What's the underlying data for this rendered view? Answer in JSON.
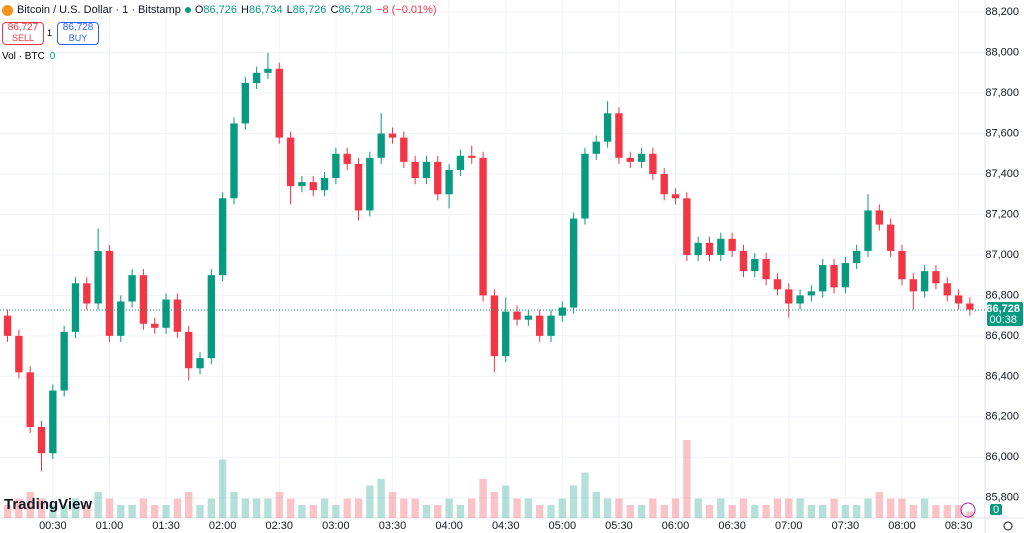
{
  "header": {
    "symbol": "Bitcoin / U.S. Dollar · 1 · Bitstamp",
    "ohlc": [
      {
        "key": "O",
        "value": "86,726"
      },
      {
        "key": "H",
        "value": "86,734"
      },
      {
        "key": "L",
        "value": "86,726"
      },
      {
        "key": "C",
        "value": "86,728"
      }
    ],
    "change": "−8 (−0.01%)",
    "sell": {
      "price": "86,727",
      "label": "SELL"
    },
    "buy": {
      "price": "86,728",
      "label": "BUY"
    },
    "quantity": "1",
    "logo": "TradingView"
  },
  "chart_data": {
    "type": "candlestick",
    "up_color": "#089981",
    "down_color": "#f23645",
    "grid": true,
    "x": [
      6,
      12,
      18,
      24,
      30,
      36,
      42,
      48,
      54,
      60,
      66,
      72,
      78,
      84,
      90,
      96,
      102,
      108,
      114,
      120,
      126,
      132,
      138,
      144,
      150,
      156,
      162,
      168,
      174,
      180,
      186,
      192,
      198,
      204,
      210,
      216,
      222,
      228,
      234,
      240,
      246,
      252,
      258,
      264,
      270,
      276,
      282,
      288,
      294,
      300,
      306,
      312,
      318,
      324,
      330,
      336,
      342,
      348,
      354,
      360,
      366,
      372,
      378,
      384,
      390,
      396,
      402,
      408,
      414,
      420,
      426,
      432,
      438,
      444,
      450,
      456,
      462,
      468,
      474,
      480,
      486,
      492,
      498,
      504,
      510,
      516
    ],
    "open": [
      86700,
      86600,
      86420,
      86150,
      86020,
      86330,
      86620,
      86860,
      86760,
      87020,
      86600,
      86770,
      86900,
      86660,
      86640,
      86780,
      86620,
      86440,
      86490,
      86900,
      87280,
      87650,
      87850,
      87900,
      87920,
      87580,
      87340,
      87360,
      87320,
      87380,
      87500,
      87450,
      87220,
      87480,
      87600,
      87580,
      87460,
      87380,
      87460,
      87300,
      87420,
      87490,
      87480,
      86800,
      86500,
      86720,
      86680,
      86700,
      86600,
      86700,
      86740,
      87180,
      87500,
      87560,
      87700,
      87480,
      87460,
      87500,
      87400,
      87300,
      87280,
      87000,
      87060,
      87000,
      87080,
      87020,
      86920,
      86980,
      86880,
      86830,
      86760,
      86800,
      86820,
      86950,
      86840,
      86960,
      87020,
      87220,
      87150,
      87020,
      86880,
      86820,
      86920,
      86860,
      86800,
      86760
    ],
    "high": [
      86730,
      86630,
      86450,
      86180,
      86360,
      86650,
      86890,
      86890,
      87130,
      87050,
      86800,
      86930,
      86930,
      86690,
      86810,
      86810,
      86650,
      86520,
      86930,
      87310,
      87680,
      87880,
      87930,
      88000,
      87950,
      87610,
      87390,
      87390,
      87410,
      87530,
      87530,
      87480,
      87510,
      87700,
      87630,
      87610,
      87490,
      87490,
      87490,
      87450,
      87520,
      87540,
      87510,
      86830,
      86790,
      86750,
      86730,
      86730,
      86730,
      86770,
      87210,
      87530,
      87590,
      87760,
      87730,
      87510,
      87530,
      87530,
      87430,
      87330,
      87310,
      87090,
      87090,
      87110,
      87110,
      87050,
      87010,
      87010,
      86910,
      86860,
      86830,
      86850,
      86980,
      86980,
      86990,
      87050,
      87300,
      87250,
      87180,
      87050,
      86910,
      86950,
      86950,
      86890,
      86830,
      86790
    ],
    "low": [
      86570,
      86390,
      86120,
      85930,
      85990,
      86300,
      86590,
      86730,
      86730,
      86570,
      86570,
      86740,
      86630,
      86610,
      86610,
      86590,
      86380,
      86410,
      86460,
      86870,
      87250,
      87620,
      87820,
      87870,
      87550,
      87250,
      87310,
      87290,
      87290,
      87350,
      87420,
      87170,
      87190,
      87450,
      87550,
      87430,
      87350,
      87350,
      87270,
      87230,
      87390,
      87450,
      86770,
      86420,
      86470,
      86650,
      86650,
      86570,
      86570,
      86670,
      86710,
      87150,
      87470,
      87530,
      87450,
      87430,
      87430,
      87370,
      87270,
      87250,
      86970,
      86970,
      86970,
      86970,
      86990,
      86890,
      86890,
      86850,
      86800,
      86690,
      86730,
      86770,
      86790,
      86810,
      86810,
      86930,
      86990,
      87120,
      86990,
      86850,
      86730,
      86790,
      86830,
      86770,
      86730,
      86700
    ],
    "close": [
      86600,
      86420,
      86150,
      86020,
      86330,
      86620,
      86860,
      86760,
      87020,
      86600,
      86770,
      86900,
      86660,
      86640,
      86780,
      86620,
      86440,
      86490,
      86900,
      87280,
      87650,
      87850,
      87900,
      87920,
      87580,
      87340,
      87360,
      87320,
      87380,
      87500,
      87450,
      87220,
      87480,
      87600,
      87580,
      87460,
      87380,
      87460,
      87300,
      87420,
      87490,
      87480,
      86800,
      86500,
      86720,
      86680,
      86700,
      86600,
      86700,
      86740,
      87180,
      87500,
      87560,
      87700,
      87480,
      87460,
      87500,
      87400,
      87300,
      87280,
      87000,
      87060,
      87000,
      87080,
      87020,
      86920,
      86980,
      86880,
      86830,
      86760,
      86800,
      86820,
      86950,
      86840,
      86960,
      87020,
      87220,
      87150,
      87020,
      86880,
      86820,
      86920,
      86860,
      86800,
      86760,
      86730
    ],
    "volume": [
      2,
      3,
      4,
      3,
      2,
      2,
      3,
      2,
      4,
      3,
      2,
      2,
      3,
      2,
      2,
      3,
      4,
      2,
      3,
      9,
      4,
      3,
      3,
      3,
      4,
      3,
      2,
      2,
      3,
      2,
      3,
      3,
      5,
      6,
      4,
      3,
      3,
      2,
      2,
      3,
      2,
      3,
      6,
      4,
      5,
      3,
      3,
      2,
      2,
      3,
      5,
      7,
      4,
      3,
      3,
      2,
      2,
      3,
      2,
      3,
      12,
      3,
      2,
      3,
      2,
      3,
      2,
      2,
      3,
      3,
      3,
      2,
      2,
      3,
      2,
      2,
      3,
      4,
      3,
      3,
      2,
      3,
      2,
      2,
      2,
      1
    ],
    "volume_label": "Vol · BTC",
    "volume_value": "0",
    "volume_lim": [
      0,
      20
    ],
    "volume_ticks": [
      0
    ],
    "xlim": [
      2,
      524
    ],
    "ylim": [
      85700,
      88260
    ],
    "xticks": [
      {
        "value": 30,
        "label": "00:30"
      },
      {
        "value": 60,
        "label": "01:00"
      },
      {
        "value": 90,
        "label": "01:30"
      },
      {
        "value": 120,
        "label": "02:00"
      },
      {
        "value": 150,
        "label": "02:30"
      },
      {
        "value": 180,
        "label": "03:00"
      },
      {
        "value": 210,
        "label": "03:30"
      },
      {
        "value": 240,
        "label": "04:00"
      },
      {
        "value": 270,
        "label": "04:30"
      },
      {
        "value": 300,
        "label": "05:00"
      },
      {
        "value": 330,
        "label": "05:30"
      },
      {
        "value": 360,
        "label": "06:00"
      },
      {
        "value": 390,
        "label": "06:30"
      },
      {
        "value": 420,
        "label": "07:00"
      },
      {
        "value": 450,
        "label": "07:30"
      },
      {
        "value": 480,
        "label": "08:00"
      },
      {
        "value": 510,
        "label": "08:30"
      }
    ],
    "yticks": [
      {
        "value": 85800,
        "label": "85,800"
      },
      {
        "value": 86000,
        "label": "86,000"
      },
      {
        "value": 86200,
        "label": "86,200"
      },
      {
        "value": 86400,
        "label": "86,400"
      },
      {
        "value": 86600,
        "label": "86,600"
      },
      {
        "value": 86800,
        "label": "86,800"
      },
      {
        "value": 87000,
        "label": "87,000"
      },
      {
        "value": 87200,
        "label": "87,200"
      },
      {
        "value": 87400,
        "label": "87,400"
      },
      {
        "value": 87600,
        "label": "87,600"
      },
      {
        "value": 87800,
        "label": "87,800"
      },
      {
        "value": 88000,
        "label": "88,000"
      },
      {
        "value": 88200,
        "label": "88,200"
      }
    ],
    "last_price": {
      "value": 86728,
      "label": "86,728"
    },
    "countdown": "00:38"
  }
}
